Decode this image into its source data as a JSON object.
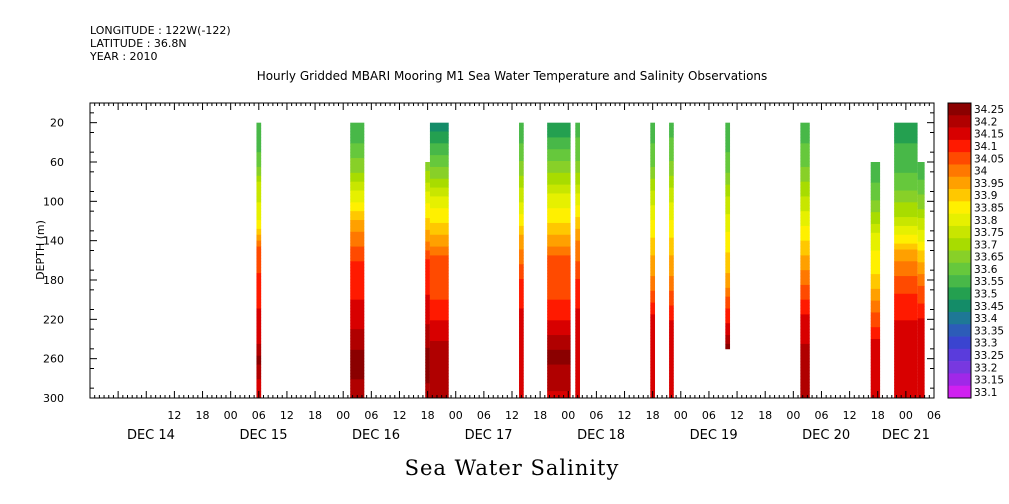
{
  "header": {
    "longitude": "LONGITUDE : 122W(-122)",
    "latitude": "LATITUDE : 36.8N",
    "year": "YEAR : 2010"
  },
  "chart_data": {
    "type": "heatmap",
    "title": "Hourly Gridded MBARI Mooring M1 Sea Water Temperature and Salinity Observations",
    "xlabel": "Sea Water Salinity",
    "ylabel": "DEPTH (m)",
    "x_unit": "hours since DEC 14 00:00, 2010",
    "xlim": [
      -6,
      174
    ],
    "ylim": [
      300,
      0
    ],
    "y_ticks": [
      20,
      60,
      100,
      140,
      180,
      220,
      260,
      300
    ],
    "x_hour_ticks": [
      {
        "h": 12,
        "label": "12"
      },
      {
        "h": 18,
        "label": "18"
      },
      {
        "h": 24,
        "label": "00"
      },
      {
        "h": 30,
        "label": "06"
      },
      {
        "h": 36,
        "label": "12"
      },
      {
        "h": 42,
        "label": "18"
      },
      {
        "h": 48,
        "label": "00"
      },
      {
        "h": 54,
        "label": "06"
      },
      {
        "h": 60,
        "label": "12"
      },
      {
        "h": 66,
        "label": "18"
      },
      {
        "h": 72,
        "label": "00"
      },
      {
        "h": 78,
        "label": "06"
      },
      {
        "h": 84,
        "label": "12"
      },
      {
        "h": 90,
        "label": "18"
      },
      {
        "h": 96,
        "label": "00"
      },
      {
        "h": 102,
        "label": "06"
      },
      {
        "h": 108,
        "label": "12"
      },
      {
        "h": 114,
        "label": "18"
      },
      {
        "h": 120,
        "label": "00"
      },
      {
        "h": 126,
        "label": "06"
      },
      {
        "h": 132,
        "label": "12"
      },
      {
        "h": 138,
        "label": "18"
      },
      {
        "h": 144,
        "label": "00"
      },
      {
        "h": 150,
        "label": "06"
      },
      {
        "h": 156,
        "label": "12"
      },
      {
        "h": 162,
        "label": "18"
      },
      {
        "h": 168,
        "label": "00"
      },
      {
        "h": 174,
        "label": "06"
      }
    ],
    "day_labels": [
      {
        "h": 7,
        "label": "DEC 14"
      },
      {
        "h": 31,
        "label": "DEC 15"
      },
      {
        "h": 55,
        "label": "DEC 16"
      },
      {
        "h": 79,
        "label": "DEC 17"
      },
      {
        "h": 103,
        "label": "DEC 18"
      },
      {
        "h": 127,
        "label": "DEC 19"
      },
      {
        "h": 151,
        "label": "DEC 20"
      },
      {
        "h": 168,
        "label": "DEC 21"
      }
    ],
    "colorbar": {
      "levels": [
        "34.25",
        "34.2",
        "34.15",
        "34.1",
        "34.05",
        "34",
        "33.95",
        "33.9",
        "33.85",
        "33.8",
        "33.75",
        "33.7",
        "33.65",
        "33.6",
        "33.55",
        "33.5",
        "33.45",
        "33.4",
        "33.35",
        "33.3",
        "33.25",
        "33.2",
        "33.15",
        "33.1"
      ],
      "colors": [
        "#8b0000",
        "#b00000",
        "#d80000",
        "#ff1a00",
        "#ff4a00",
        "#ff7800",
        "#ffa000",
        "#ffc800",
        "#fff000",
        "#e6f000",
        "#c8e600",
        "#a8dc00",
        "#88d028",
        "#66c83c",
        "#48b848",
        "#24a050",
        "#148c68",
        "#1e7896",
        "#2c5cb8",
        "#3a44d0",
        "#5a3cdc",
        "#7838e0",
        "#a028e8",
        "#d020f0"
      ]
    },
    "profiles": [
      {
        "start": 29.5,
        "end": 30.5,
        "top": 20,
        "values": [
          {
            "d": 20,
            "v": 33.52
          },
          {
            "d": 60,
            "v": 33.56
          },
          {
            "d": 80,
            "v": 33.7
          },
          {
            "d": 120,
            "v": 33.8
          },
          {
            "d": 150,
            "v": 34.02
          },
          {
            "d": 210,
            "v": 34.1
          },
          {
            "d": 245,
            "v": 34.15
          },
          {
            "d": 260,
            "v": 34.22
          },
          {
            "d": 280,
            "v": 34.15
          },
          {
            "d": 300,
            "v": 34.12
          }
        ]
      },
      {
        "start": 49.5,
        "end": 52.5,
        "top": 20,
        "values": [
          {
            "d": 20,
            "v": 33.5
          },
          {
            "d": 40,
            "v": 33.55
          },
          {
            "d": 70,
            "v": 33.65
          },
          {
            "d": 100,
            "v": 33.8
          },
          {
            "d": 130,
            "v": 33.95
          },
          {
            "d": 160,
            "v": 34.05
          },
          {
            "d": 200,
            "v": 34.1
          },
          {
            "d": 230,
            "v": 34.15
          },
          {
            "d": 260,
            "v": 34.22
          },
          {
            "d": 280,
            "v": 34.2
          },
          {
            "d": 300,
            "v": 34.15
          }
        ]
      },
      {
        "start": 65.5,
        "end": 66.5,
        "top": 60,
        "values": [
          {
            "d": 60,
            "v": 33.6
          },
          {
            "d": 90,
            "v": 33.75
          },
          {
            "d": 130,
            "v": 33.9
          },
          {
            "d": 160,
            "v": 34.05
          },
          {
            "d": 210,
            "v": 34.12
          },
          {
            "d": 250,
            "v": 34.2
          },
          {
            "d": 270,
            "v": 34.22
          },
          {
            "d": 300,
            "v": 34.18
          }
        ]
      },
      {
        "start": 66.5,
        "end": 70.5,
        "top": 20,
        "values": [
          {
            "d": 20,
            "v": 33.4
          },
          {
            "d": 40,
            "v": 33.5
          },
          {
            "d": 70,
            "v": 33.62
          },
          {
            "d": 100,
            "v": 33.78
          },
          {
            "d": 130,
            "v": 33.88
          },
          {
            "d": 160,
            "v": 34.02
          },
          {
            "d": 200,
            "v": 34.05
          },
          {
            "d": 230,
            "v": 34.12
          },
          {
            "d": 260,
            "v": 34.2
          },
          {
            "d": 280,
            "v": 34.18
          },
          {
            "d": 300,
            "v": 34.15
          }
        ]
      },
      {
        "start": 85.5,
        "end": 86.5,
        "top": 20,
        "values": [
          {
            "d": 20,
            "v": 33.5
          },
          {
            "d": 60,
            "v": 33.6
          },
          {
            "d": 100,
            "v": 33.75
          },
          {
            "d": 140,
            "v": 33.92
          },
          {
            "d": 180,
            "v": 34.05
          },
          {
            "d": 220,
            "v": 34.12
          },
          {
            "d": 250,
            "v": 34.15
          },
          {
            "d": 300,
            "v": 34.12
          }
        ]
      },
      {
        "start": 91.5,
        "end": 96.5,
        "top": 20,
        "values": [
          {
            "d": 20,
            "v": 33.45
          },
          {
            "d": 40,
            "v": 33.52
          },
          {
            "d": 70,
            "v": 33.65
          },
          {
            "d": 100,
            "v": 33.78
          },
          {
            "d": 130,
            "v": 33.88
          },
          {
            "d": 160,
            "v": 34.02
          },
          {
            "d": 200,
            "v": 34.05
          },
          {
            "d": 230,
            "v": 34.12
          },
          {
            "d": 255,
            "v": 34.22
          },
          {
            "d": 275,
            "v": 34.18
          },
          {
            "d": 300,
            "v": 34.14
          }
        ]
      },
      {
        "start": 97.5,
        "end": 98.5,
        "top": 20,
        "values": [
          {
            "d": 20,
            "v": 33.52
          },
          {
            "d": 60,
            "v": 33.6
          },
          {
            "d": 100,
            "v": 33.78
          },
          {
            "d": 140,
            "v": 33.95
          },
          {
            "d": 180,
            "v": 34.05
          },
          {
            "d": 220,
            "v": 34.12
          },
          {
            "d": 260,
            "v": 34.15
          },
          {
            "d": 300,
            "v": 34.12
          }
        ]
      },
      {
        "start": 113.5,
        "end": 114.5,
        "top": 20,
        "values": [
          {
            "d": 20,
            "v": 33.52
          },
          {
            "d": 60,
            "v": 33.58
          },
          {
            "d": 100,
            "v": 33.74
          },
          {
            "d": 140,
            "v": 33.86
          },
          {
            "d": 180,
            "v": 33.96
          },
          {
            "d": 220,
            "v": 34.12
          },
          {
            "d": 260,
            "v": 34.15
          },
          {
            "d": 300,
            "v": 34.12
          }
        ]
      },
      {
        "start": 117.5,
        "end": 118.5,
        "top": 20,
        "values": [
          {
            "d": 20,
            "v": 33.52
          },
          {
            "d": 60,
            "v": 33.6
          },
          {
            "d": 100,
            "v": 33.75
          },
          {
            "d": 140,
            "v": 33.86
          },
          {
            "d": 180,
            "v": 33.96
          },
          {
            "d": 220,
            "v": 34.1
          },
          {
            "d": 260,
            "v": 34.12
          },
          {
            "d": 300,
            "v": 34.1
          }
        ]
      },
      {
        "start": 129.5,
        "end": 130.5,
        "top": 20,
        "bottom": 250,
        "values": [
          {
            "d": 20,
            "v": 33.52
          },
          {
            "d": 60,
            "v": 33.56
          },
          {
            "d": 100,
            "v": 33.72
          },
          {
            "d": 140,
            "v": 33.82
          },
          {
            "d": 180,
            "v": 33.92
          },
          {
            "d": 210,
            "v": 34.05
          },
          {
            "d": 235,
            "v": 34.15
          },
          {
            "d": 250,
            "v": 34.22
          }
        ]
      },
      {
        "start": 145.5,
        "end": 147.5,
        "top": 20,
        "values": [
          {
            "d": 20,
            "v": 33.52
          },
          {
            "d": 60,
            "v": 33.58
          },
          {
            "d": 100,
            "v": 33.72
          },
          {
            "d": 140,
            "v": 33.85
          },
          {
            "d": 180,
            "v": 33.98
          },
          {
            "d": 220,
            "v": 34.12
          },
          {
            "d": 245,
            "v": 34.15
          },
          {
            "d": 260,
            "v": 34.2
          },
          {
            "d": 300,
            "v": 34.18
          }
        ]
      },
      {
        "start": 160.5,
        "end": 162.5,
        "top": 60,
        "values": [
          {
            "d": 60,
            "v": 33.5
          },
          {
            "d": 100,
            "v": 33.6
          },
          {
            "d": 140,
            "v": 33.78
          },
          {
            "d": 180,
            "v": 33.86
          },
          {
            "d": 200,
            "v": 33.95
          },
          {
            "d": 240,
            "v": 34.1
          },
          {
            "d": 270,
            "v": 34.15
          },
          {
            "d": 300,
            "v": 34.12
          }
        ]
      },
      {
        "start": 165.5,
        "end": 170.5,
        "top": 20,
        "values": [
          {
            "d": 20,
            "v": 33.48
          },
          {
            "d": 60,
            "v": 33.52
          },
          {
            "d": 90,
            "v": 33.6
          },
          {
            "d": 120,
            "v": 33.72
          },
          {
            "d": 150,
            "v": 33.9
          },
          {
            "d": 180,
            "v": 34.02
          },
          {
            "d": 220,
            "v": 34.1
          },
          {
            "d": 250,
            "v": 34.15
          },
          {
            "d": 270,
            "v": 34.12
          },
          {
            "d": 300,
            "v": 34.1
          }
        ]
      },
      {
        "start": 170.5,
        "end": 172.0,
        "top": 60,
        "values": [
          {
            "d": 60,
            "v": 33.5
          },
          {
            "d": 100,
            "v": 33.62
          },
          {
            "d": 140,
            "v": 33.8
          },
          {
            "d": 180,
            "v": 33.98
          },
          {
            "d": 220,
            "v": 34.1
          },
          {
            "d": 260,
            "v": 34.15
          },
          {
            "d": 300,
            "v": 34.12
          }
        ]
      }
    ]
  }
}
